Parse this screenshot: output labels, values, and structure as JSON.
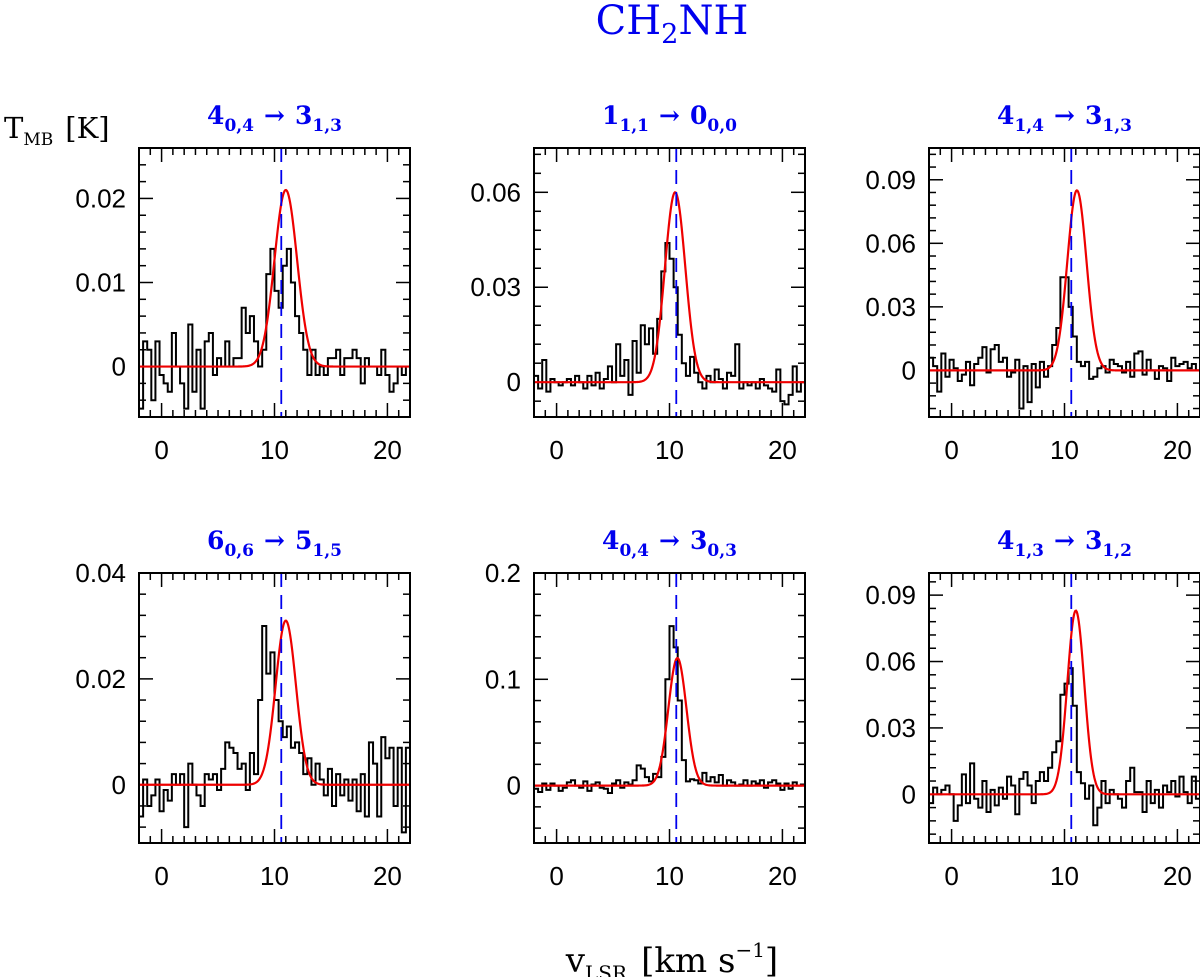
{
  "figure": {
    "title_main": "CH",
    "title_sub": "2",
    "title_tail": "NH",
    "ylabel_main": "T",
    "ylabel_sub": "MB",
    "ylabel_unit": "[K]",
    "xlabel_main": "v",
    "xlabel_sub": "LSR",
    "xlabel_unit": "[km s",
    "xlabel_exp": "−1",
    "xlabel_close": "]"
  },
  "colors": {
    "title": "#0000ee",
    "spectrum": "#000000",
    "fit": "#ee0000",
    "vlsr_line": "#0000ee",
    "axes": "#000000"
  },
  "chart_data": [
    {
      "type": "line",
      "transition": {
        "upper": "4",
        "upper_sub": "0,4",
        "arrow": "→",
        "lower": "3",
        "lower_sub": "1,3"
      },
      "xlim": [
        -2,
        22
      ],
      "ylim": [
        -0.006,
        0.026
      ],
      "xticks": [
        "0",
        "10",
        "20"
      ],
      "yticks": [
        "0",
        "0.01",
        "0.02"
      ],
      "ytick_values": [
        0,
        0.01,
        0.02
      ],
      "vline": 10.6,
      "fit": {
        "amp": 0.021,
        "center": 11.0,
        "sigma": 1.0
      },
      "series": [
        {
          "kind": "step",
          "y": [
            -0.005,
            0.003,
            0.002,
            -0.004,
            0.003,
            -0.001,
            -0.002,
            -0.003,
            0.004,
            0.0,
            -0.002,
            -0.005,
            0.005,
            -0.003,
            0.002,
            -0.005,
            0.003,
            0.004,
            -0.001,
            0.001,
            0.0,
            0.003,
            0.0,
            0.001,
            0.001,
            0.007,
            0.004,
            0.006,
            0.003,
            0.0,
            0.002,
            0.011,
            0.014,
            0.009,
            0.007,
            0.012,
            0.014,
            0.01,
            0.006,
            0.004,
            0.002,
            -0.001,
            0.002,
            -0.001,
            0.0,
            -0.001,
            0.001,
            0.001,
            0.002,
            -0.001,
            0.001,
            0.001,
            0.002,
            0.001,
            -0.002,
            0.001,
            0.0,
            0.0,
            -0.001,
            0.002,
            -0.001,
            -0.003,
            -0.002,
            0.0,
            -0.001,
            0.0
          ]
        }
      ]
    },
    {
      "type": "line",
      "transition": {
        "upper": "1",
        "upper_sub": "1,1",
        "arrow": "→",
        "lower": "0",
        "lower_sub": "0,0"
      },
      "xlim": [
        -2,
        22
      ],
      "ylim": [
        -0.011,
        0.074
      ],
      "xticks": [
        "0",
        "10",
        "20"
      ],
      "yticks": [
        "0",
        "0.03",
        "0.06"
      ],
      "ytick_values": [
        0,
        0.03,
        0.06
      ],
      "vline": 10.6,
      "fit": {
        "amp": 0.06,
        "center": 10.5,
        "sigma": 0.9
      },
      "series": [
        {
          "kind": "step",
          "y": [
            0.002,
            -0.002,
            0.007,
            -0.003,
            0.001,
            0.0,
            -0.001,
            0.0,
            0.001,
            -0.001,
            0.002,
            0.0,
            -0.002,
            0.002,
            -0.001,
            0.003,
            -0.002,
            0.001,
            0.005,
            0.0,
            0.012,
            0.002,
            0.007,
            -0.004,
            0.013,
            0.003,
            0.018,
            0.012,
            0.017,
            0.009,
            0.02,
            0.035,
            0.044,
            0.039,
            0.03,
            0.015,
            0.006,
            0.002,
            0.008,
            0.003,
            0.0,
            -0.002,
            0.002,
            0.0,
            0.004,
            0.001,
            -0.002,
            0.003,
            0.002,
            0.012,
            -0.002,
            0.0,
            -0.001,
            0.0,
            -0.002,
            0.001,
            -0.001,
            -0.002,
            -0.003,
            0.004,
            -0.006,
            -0.007,
            -0.004,
            0.005,
            -0.003,
            0.0
          ]
        }
      ]
    },
    {
      "type": "line",
      "transition": {
        "upper": "4",
        "upper_sub": "1,4",
        "arrow": "→",
        "lower": "3",
        "lower_sub": "1,3"
      },
      "xlim": [
        -2,
        22
      ],
      "ylim": [
        -0.022,
        0.105
      ],
      "xticks": [
        "0",
        "10",
        "20"
      ],
      "yticks": [
        "0",
        "0.03",
        "0.06",
        "0.09"
      ],
      "ytick_values": [
        0,
        0.03,
        0.06,
        0.09
      ],
      "vline": 10.6,
      "fit": {
        "amp": 0.085,
        "center": 11.1,
        "sigma": 0.85
      },
      "series": [
        {
          "kind": "step",
          "y": [
            0.006,
            0.002,
            -0.01,
            0.008,
            -0.003,
            0.005,
            0.001,
            -0.005,
            -0.002,
            0.004,
            -0.007,
            0.003,
            0.006,
            0.011,
            -0.001,
            0.01,
            0.012,
            0.004,
            0.006,
            -0.003,
            -0.001,
            0.005,
            -0.018,
            0.002,
            -0.015,
            0.003,
            -0.008,
            0.004,
            -0.003,
            0.002,
            0.012,
            0.02,
            0.044,
            0.044,
            0.03,
            0.016,
            0.004,
            0.002,
            0.004,
            -0.004,
            -0.003,
            0.001,
            0.002,
            -0.001,
            0.005,
            0.003,
            0.002,
            -0.001,
            0.004,
            -0.003,
            0.008,
            0.009,
            -0.002,
            0.005,
            0.0,
            -0.004,
            0.002,
            0.001,
            -0.005,
            0.006,
            0.002,
            0.003,
            0.004,
            0.001,
            0.003,
            0.0
          ]
        }
      ]
    },
    {
      "type": "line",
      "transition": {
        "upper": "6",
        "upper_sub": "0,6",
        "arrow": "→",
        "lower": "5",
        "lower_sub": "1,5"
      },
      "xlim": [
        -2,
        22
      ],
      "ylim": [
        -0.011,
        0.04
      ],
      "xticks": [
        "0",
        "10",
        "20"
      ],
      "yticks": [
        "0",
        "0.02",
        "0.04"
      ],
      "ytick_values": [
        0,
        0.02,
        0.04
      ],
      "vline": 10.6,
      "fit": {
        "amp": 0.031,
        "center": 11.0,
        "sigma": 0.9
      },
      "series": [
        {
          "kind": "step",
          "y": [
            -0.006,
            0.001,
            -0.004,
            -0.002,
            0.001,
            -0.005,
            -0.001,
            -0.003,
            0.002,
            0.0,
            0.002,
            -0.008,
            0.004,
            0.0,
            -0.002,
            -0.004,
            0.002,
            0.001,
            0.002,
            -0.001,
            0.003,
            0.008,
            0.007,
            0.006,
            0.003,
            0.004,
            -0.001,
            0.006,
            0.002,
            0.016,
            0.03,
            0.021,
            0.025,
            0.016,
            0.012,
            0.009,
            0.011,
            0.007,
            0.008,
            0.006,
            0.002,
            0.005,
            0.0,
            0.004,
            0.001,
            -0.002,
            0.003,
            -0.004,
            0.002,
            -0.002,
            0.001,
            -0.003,
            0.001,
            -0.005,
            0.002,
            -0.006,
            0.008,
            0.004,
            -0.006,
            0.009,
            0.005,
            0.007,
            -0.004,
            0.007,
            -0.009,
            0.007
          ]
        }
      ]
    },
    {
      "type": "line",
      "transition": {
        "upper": "4",
        "upper_sub": "0,4",
        "arrow": "→",
        "lower": "3",
        "lower_sub": "0,3"
      },
      "xlim": [
        -2,
        22
      ],
      "ylim": [
        -0.054,
        0.2
      ],
      "xticks": [
        "0",
        "10",
        "20"
      ],
      "yticks": [
        "0",
        "0.1",
        "0.2"
      ],
      "ytick_values": [
        0,
        0.1,
        0.2
      ],
      "vline": 10.6,
      "fit": {
        "amp": 0.12,
        "center": 10.7,
        "sigma": 0.8
      },
      "series": [
        {
          "kind": "step",
          "y": [
            -0.003,
            -0.006,
            0.002,
            -0.004,
            0.002,
            0.0,
            -0.005,
            -0.002,
            0.003,
            0.005,
            0.0,
            -0.002,
            0.004,
            -0.005,
            0.001,
            0.003,
            -0.002,
            -0.003,
            -0.007,
            0.002,
            0.005,
            -0.002,
            0.003,
            0.001,
            0.005,
            0.019,
            0.016,
            0.008,
            0.004,
            0.011,
            0.008,
            0.027,
            0.1,
            0.15,
            0.13,
            0.08,
            0.024,
            0.004,
            0.006,
            0.005,
            0.002,
            0.012,
            0.004,
            0.008,
            0.003,
            0.01,
            0.0,
            0.005,
            0.003,
            0.0,
            0.001,
            0.005,
            0.0,
            0.004,
            0.002,
            0.005,
            -0.002,
            0.003,
            0.005,
            0.002,
            -0.004,
            0.002,
            -0.003,
            0.003,
            0.0,
            0.001
          ]
        }
      ]
    },
    {
      "type": "line",
      "transition": {
        "upper": "4",
        "upper_sub": "1,3",
        "arrow": "→",
        "lower": "3",
        "lower_sub": "1,2"
      },
      "xlim": [
        -2,
        22
      ],
      "ylim": [
        -0.022,
        0.1
      ],
      "xticks": [
        "0",
        "10",
        "20"
      ],
      "yticks": [
        "0",
        "0.03",
        "0.06",
        "0.09"
      ],
      "ytick_values": [
        0,
        0.03,
        0.06,
        0.09
      ],
      "vline": 10.6,
      "fit": {
        "amp": 0.083,
        "center": 11.0,
        "sigma": 0.75
      },
      "series": [
        {
          "kind": "step",
          "y": [
            -0.004,
            0.003,
            0.0,
            0.002,
            0.004,
            0.0,
            -0.012,
            -0.005,
            0.009,
            -0.004,
            0.014,
            -0.002,
            -0.006,
            0.006,
            -0.008,
            0.002,
            -0.005,
            0.003,
            -0.002,
            0.008,
            0.004,
            -0.009,
            0.007,
            0.01,
            0.004,
            -0.004,
            0.006,
            0.01,
            0.006,
            0.012,
            0.019,
            0.024,
            0.045,
            0.05,
            0.057,
            0.04,
            0.01,
            0.005,
            -0.002,
            0.004,
            -0.014,
            -0.006,
            0.006,
            -0.004,
            0.002,
            0.0,
            -0.002,
            -0.006,
            0.006,
            0.012,
            0.001,
            0.001,
            -0.008,
            0.006,
            -0.004,
            0.002,
            -0.006,
            0.004,
            0.001,
            0.006,
            -0.001,
            0.008,
            0.001,
            -0.004,
            0.008,
            -0.002
          ]
        }
      ]
    }
  ]
}
